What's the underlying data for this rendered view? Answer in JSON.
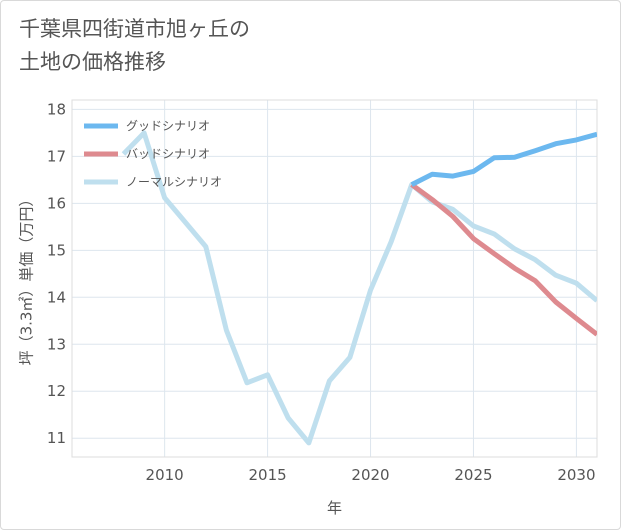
{
  "chart_data": {
    "type": "line",
    "title": "千葉県四街道市旭ヶ丘の\n土地の価格推移",
    "xlabel": "年",
    "ylabel": "坪（3.3㎡）単価（万円）",
    "xlim": [
      2005.5,
      2031
    ],
    "ylim": [
      10.6,
      18.2
    ],
    "x_ticks": [
      2010,
      2015,
      2020,
      2025,
      2030
    ],
    "y_ticks": [
      11,
      12,
      13,
      14,
      15,
      16,
      17,
      18
    ],
    "grid": true,
    "legend_position": "top-left",
    "series": [
      {
        "name": "グッドシナリオ",
        "color": "#6cb8ef",
        "x": [
          2022,
          2023,
          2024,
          2025,
          2026,
          2027,
          2028,
          2029,
          2030,
          2031
        ],
        "y": [
          16.4,
          16.62,
          16.58,
          16.68,
          16.97,
          16.98,
          17.12,
          17.27,
          17.35,
          17.47
        ]
      },
      {
        "name": "バッドシナリオ",
        "color": "#de8a8f",
        "x": [
          2022,
          2023,
          2024,
          2025,
          2026,
          2027,
          2028,
          2029,
          2030,
          2031
        ],
        "y": [
          16.4,
          16.08,
          15.72,
          15.25,
          14.93,
          14.62,
          14.35,
          13.9,
          13.55,
          13.21
        ]
      },
      {
        "name": "ノーマルシナリオ",
        "color": "#bfdfee",
        "x": [
          2008,
          2009,
          2010,
          2011,
          2012,
          2013,
          2014,
          2015,
          2016,
          2017,
          2018,
          2019,
          2020,
          2021,
          2022,
          2023,
          2024,
          2025,
          2026,
          2027,
          2028,
          2029,
          2030,
          2031
        ],
        "y": [
          17.05,
          17.5,
          16.12,
          15.6,
          15.08,
          13.3,
          12.18,
          12.35,
          11.43,
          10.9,
          12.22,
          12.72,
          14.15,
          15.18,
          16.4,
          16.03,
          15.87,
          15.52,
          15.35,
          15.03,
          14.8,
          14.47,
          14.3,
          13.93
        ]
      }
    ]
  }
}
